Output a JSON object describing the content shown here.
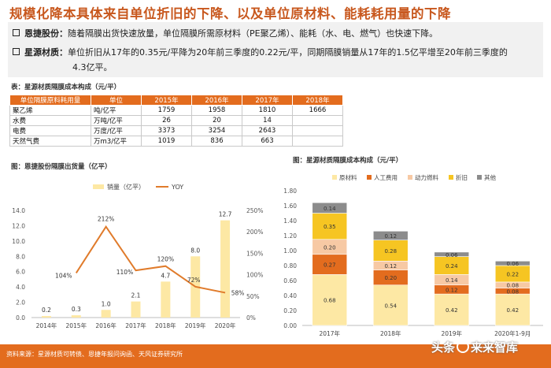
{
  "title": "规模化降本具体来自单位折旧的下降、以及单位原材料、能耗耗用量的下降",
  "bullets": [
    {
      "name": "恩捷股份：",
      "text": "随着隔膜出货快速放量，单位隔膜所需原材料（PE聚乙烯）、能耗（水、电、燃气）也快速下降。",
      "text2": ""
    },
    {
      "name": "星源材质：",
      "text": "单位折旧从17年的0.35元/平降为20年前三季度的0.22元/平，同期隔膜销量从17年的1.5亿平增至20年前三季度的",
      "text2": "4.3亿平。"
    }
  ],
  "table": {
    "caption": "表：星源材质隔膜成本构成（元/平）",
    "headers": [
      "单位隔膜原料耗用量",
      "单位",
      "2015年",
      "2016年",
      "2017年",
      "2018年"
    ],
    "rows": [
      [
        "聚乙烯",
        "吨/亿平",
        "1759",
        "1958",
        "1810",
        "1666"
      ],
      [
        "水费",
        "万吨/亿平",
        "26",
        "20",
        "14",
        ""
      ],
      [
        "电费",
        "万度/亿平",
        "3373",
        "3254",
        "2643",
        ""
      ],
      [
        "天然气费",
        "万m3/亿平",
        "1019",
        "836",
        "663",
        ""
      ]
    ]
  },
  "chart_data": [
    {
      "type": "bar",
      "caption": "图：恩捷股份隔膜出货量（亿平）",
      "categories": [
        "2014年",
        "2015年",
        "2016年",
        "2017年",
        "2018年",
        "2019年",
        "2020年"
      ],
      "series": [
        {
          "name": "销量（亿平）",
          "kind": "bar",
          "axis": "left",
          "values": [
            0.2,
            0.3,
            1.0,
            2.1,
            4.7,
            8.0,
            12.7
          ],
          "labels": [
            "0.2",
            "0.3",
            "1.0",
            "2.1",
            "4.7",
            "8.0",
            "12.7"
          ]
        },
        {
          "name": "YOY",
          "kind": "line",
          "axis": "right",
          "values": [
            null,
            104,
            212,
            110,
            120,
            72,
            58
          ],
          "labels": [
            "",
            "104%",
            "212%",
            "110%",
            "120%",
            "72%",
            "58%"
          ]
        }
      ],
      "yleft": {
        "min": 0,
        "max": 14,
        "ticks": [
          "0.0",
          "2.0",
          "4.0",
          "6.0",
          "8.0",
          "10.0",
          "12.0",
          "14.0"
        ]
      },
      "yright": {
        "min": 0,
        "max": 250,
        "ticks": [
          "0%",
          "50%",
          "100%",
          "150%",
          "200%",
          "250%"
        ]
      },
      "colors": {
        "bar": "#fde8a4",
        "line": "#e07b2b"
      }
    },
    {
      "type": "stacked_bar",
      "caption": "图：星源材质隔膜成本构成（元/平）",
      "categories": [
        "2017年",
        "2018年",
        "2019年",
        "2020年1-9月"
      ],
      "series": [
        {
          "name": "原材料",
          "color": "#fde8a4",
          "values": [
            0.68,
            0.54,
            0.42,
            0.42
          ]
        },
        {
          "name": "人工费用",
          "color": "#e36c1e",
          "values": [
            0.27,
            0.2,
            0.12,
            0.08
          ]
        },
        {
          "name": "动力燃料",
          "color": "#f7c9a4",
          "values": [
            0.2,
            0.12,
            0.14,
            0.08
          ]
        },
        {
          "name": "折旧",
          "color": "#f6c522",
          "values": [
            0.35,
            0.28,
            0.24,
            0.22
          ]
        },
        {
          "name": "其他",
          "color": "#8c8c8c",
          "values": [
            0.14,
            0.12,
            0.06,
            0.06
          ]
        }
      ],
      "labels": [
        [
          "0.68",
          "0.54",
          "0.42",
          "0.42"
        ],
        [
          "0.27",
          "0.20",
          "0.12",
          "0.08"
        ],
        [
          "0.20",
          "0.12",
          "0.14",
          "0.08"
        ],
        [
          "0.35",
          "0.28",
          "0.24",
          "0.22"
        ],
        [
          "0.14",
          "0.12",
          "0.06",
          "0.06"
        ]
      ],
      "y": {
        "min": 0,
        "max": 1.8,
        "ticks": [
          "0.00",
          "0.20",
          "0.40",
          "0.60",
          "0.80",
          "1.00",
          "1.20",
          "1.40",
          "1.60",
          "1.80"
        ]
      }
    }
  ],
  "footer": {
    "source": "资料来源：星源材质可转债、恩捷年报问询函、天风证券研究所"
  },
  "watermark": {
    "pre": "头条",
    "post": "来来智库"
  }
}
